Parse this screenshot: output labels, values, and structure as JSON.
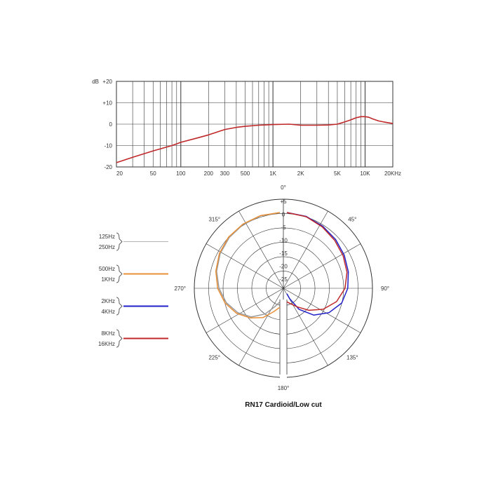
{
  "colors": {
    "grid": "#333333",
    "response": "#c0282a",
    "legend_125_250": "#9a9a9a",
    "legend_500_1k": "#e89038",
    "legend_2k_4k": "#2020c8",
    "legend_8k_16k": "#c0282a",
    "polar_left": "#e89038",
    "polar_gray": "#9a9a9a",
    "polar_blue": "#2020c8",
    "polar_red": "#c0282a"
  },
  "chart_data": [
    {
      "type": "line",
      "x_scale": "log",
      "xlim": [
        20,
        20000
      ],
      "ylim": [
        -20,
        20
      ],
      "grid": true,
      "y_unit_label": "dB",
      "y_ticks": [
        {
          "value": 20,
          "label": "+20"
        },
        {
          "value": 10,
          "label": "+10"
        },
        {
          "value": 0,
          "label": "0"
        },
        {
          "value": -10,
          "label": "-10"
        },
        {
          "value": -20,
          "label": "-20"
        }
      ],
      "x_ticks": [
        {
          "value": 20,
          "label": "20"
        },
        {
          "value": 50,
          "label": "50"
        },
        {
          "value": 100,
          "label": "100"
        },
        {
          "value": 200,
          "label": "200"
        },
        {
          "value": 300,
          "label": "300"
        },
        {
          "value": 500,
          "label": "500"
        },
        {
          "value": 1000,
          "label": "1K"
        },
        {
          "value": 2000,
          "label": "2K"
        },
        {
          "value": 5000,
          "label": "5K"
        },
        {
          "value": 10000,
          "label": "10K"
        },
        {
          "value": 20000,
          "label": "20KHz"
        }
      ],
      "series": [
        {
          "x": [
            20,
            30,
            50,
            80,
            100,
            150,
            200,
            300,
            400,
            500,
            700,
            1000,
            1500,
            2000,
            3000,
            4000,
            5000,
            6000,
            7000,
            8000,
            9000,
            10000,
            11000,
            12000,
            14000,
            16000,
            20000
          ],
          "y": [
            -18,
            -15.5,
            -12.5,
            -10,
            -8.5,
            -6.5,
            -5,
            -2.5,
            -1.5,
            -1,
            -0.5,
            -0.2,
            0,
            -0.5,
            -0.5,
            -0.4,
            0,
            1,
            2,
            3,
            3.5,
            3.5,
            3.2,
            2.5,
            1.5,
            1,
            0.3
          ]
        }
      ]
    },
    {
      "type": "polar",
      "title": "RN17 Cardioid/Low cut",
      "angle_labels": [
        {
          "angle": 0,
          "label": "0°"
        },
        {
          "angle": 45,
          "label": "45°"
        },
        {
          "angle": 90,
          "label": "90°"
        },
        {
          "angle": 135,
          "label": "135°"
        },
        {
          "angle": 180,
          "label": "180°"
        },
        {
          "angle": 225,
          "label": "225°"
        },
        {
          "angle": 270,
          "label": "270°"
        },
        {
          "angle": 315,
          "label": "315°"
        }
      ],
      "radial_labels": [
        "+5",
        "0",
        "-5",
        "-10",
        "-15",
        "-20",
        "-25"
      ],
      "legend": [
        {
          "top": "125Hz",
          "bottom": "250Hz"
        },
        {
          "top": "500Hz",
          "bottom": "1KHz"
        },
        {
          "top": "2KHz",
          "bottom": "4KHz"
        },
        {
          "top": "8KHz",
          "bottom": "16KHz"
        }
      ],
      "series": [
        {
          "key": "125_250",
          "side": "left",
          "angle": [
            0,
            15,
            30,
            45,
            60,
            75,
            90,
            105,
            120,
            135,
            150,
            165,
            180
          ],
          "db": [
            0,
            -0.3,
            -0.8,
            -1.5,
            -2.5,
            -3.8,
            -5.5,
            -7.5,
            -10,
            -13,
            -17,
            -21,
            -23
          ]
        },
        {
          "key": "500_1k",
          "side": "left",
          "angle": [
            0,
            15,
            30,
            45,
            60,
            75,
            90,
            105,
            120,
            135,
            150,
            165,
            180
          ],
          "db": [
            0,
            -0.2,
            -0.6,
            -1.2,
            -2.2,
            -3.5,
            -5,
            -7,
            -9.5,
            -12.5,
            -15.5,
            -19,
            -21
          ]
        },
        {
          "key": "2k_4k",
          "side": "right",
          "angle": [
            0,
            15,
            30,
            45,
            60,
            75,
            90,
            105,
            120,
            135,
            150,
            165,
            180
          ],
          "db": [
            0,
            -0.5,
            -1.5,
            -2.5,
            -3.5,
            -4.5,
            -5.5,
            -7,
            -10,
            -14,
            -19,
            -24,
            -26
          ]
        },
        {
          "key": "8k_16k",
          "side": "right",
          "angle": [
            0,
            15,
            30,
            45,
            60,
            75,
            90,
            105,
            120,
            135,
            150,
            165,
            180
          ],
          "db": [
            0,
            -0.6,
            -1.8,
            -3,
            -4,
            -5,
            -6.5,
            -9,
            -12.5,
            -16.5,
            -20,
            -22,
            -23
          ]
        }
      ]
    }
  ]
}
